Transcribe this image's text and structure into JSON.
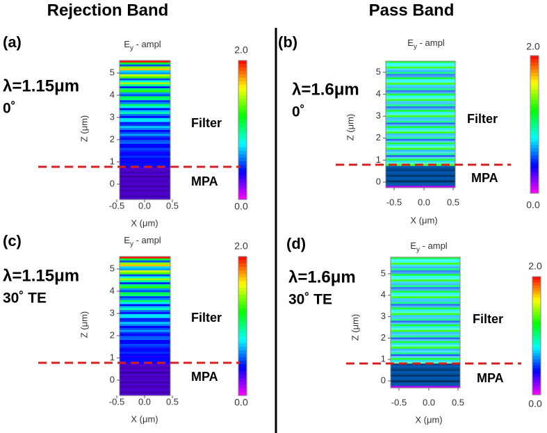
{
  "headers": [
    "Rejection Band",
    "Pass Band"
  ],
  "panels": [
    {
      "label": "(a)",
      "plot_title": {
        "main": "E",
        "sub": "y",
        "rest": " - ampl"
      },
      "wavelength": "λ=1.15μm",
      "angle": "0˚",
      "upper_label": "Filter",
      "lower_label": "MPA",
      "z_label": "Z (μm)",
      "x_label": "X (μm)",
      "z_ticks": [
        "0",
        "1",
        "2",
        "3",
        "4",
        "5"
      ],
      "x_ticks": [
        "-0.5",
        "0.0",
        "0.5"
      ],
      "colorbar": [
        "2.0",
        "0.0"
      ]
    },
    {
      "label": "(b)",
      "plot_title": {
        "main": "E",
        "sub": "y",
        "rest": " - ampl"
      },
      "wavelength": "λ=1.6μm",
      "angle": "0˚",
      "upper_label": "Filter",
      "lower_label": "MPA",
      "z_label": "Z (μm)",
      "x_label": "X (μm)",
      "z_ticks": [
        "0",
        "1",
        "2",
        "3",
        "4",
        "5"
      ],
      "x_ticks": [
        "-0.5",
        "0.0",
        "0.5"
      ],
      "colorbar": [
        "2.0",
        "0.0"
      ]
    },
    {
      "label": "(c)",
      "plot_title": {
        "main": "E",
        "sub": "y",
        "rest": " - ampl"
      },
      "wavelength": "λ=1.15μm",
      "angle": "30˚ TE",
      "upper_label": "Filter",
      "lower_label": "MPA",
      "z_label": "Z (μm)",
      "x_label": "X (μm)",
      "z_ticks": [
        "0",
        "1",
        "2",
        "3",
        "4",
        "5"
      ],
      "x_ticks": [
        "-0.5",
        "0.0",
        "0.5"
      ],
      "colorbar": [
        "2.0",
        "0.0"
      ]
    },
    {
      "label": "(d)",
      "plot_title": {
        "main": "E",
        "sub": "y",
        "rest": " - ampl"
      },
      "wavelength": "λ=1.6μm",
      "angle": "30˚ TE",
      "upper_label": "Filter",
      "lower_label": "MPA",
      "z_label": "Z (μm)",
      "x_label": "X (μm)",
      "z_ticks": [
        "0",
        "1",
        "2",
        "3",
        "4",
        "5"
      ],
      "x_ticks": [
        "-0.5",
        "0.0",
        "0.5"
      ],
      "colorbar": [
        "2.0",
        "0.0"
      ]
    }
  ]
}
